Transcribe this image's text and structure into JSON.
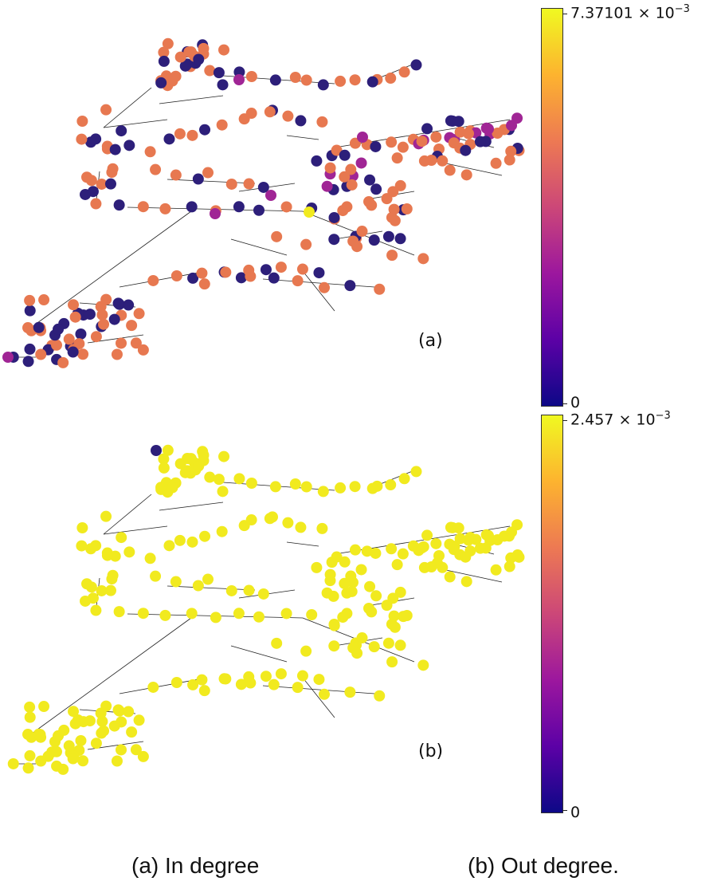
{
  "panels": {
    "a": {
      "label": "(a)",
      "caption": "(a) In degree",
      "cb_max": "7.37101",
      "cb_min": "0"
    },
    "b": {
      "label": "(b)",
      "caption": "(b) Out degree.",
      "cb_max": "2.457",
      "cb_min": "0"
    }
  },
  "exp": {
    "mult": "×",
    "base": "10",
    "power": "−3"
  },
  "colors": {
    "low": "#2d1f7a",
    "mid": "#e77850",
    "high_mid": "#a02595",
    "top": "#f1ea1f",
    "colormap": [
      "#0d0887",
      "#5c01a6",
      "#9c179e",
      "#cc4778",
      "#ed7953",
      "#fdb32f",
      "#f0f921"
    ]
  },
  "chart_data": [
    {
      "type": "network",
      "title": "(a) In degree",
      "colorbar": {
        "min": 0,
        "max": 0.00737101,
        "label_max": "7.37101 × 10^-3",
        "colormap": "plasma"
      },
      "node_value_classes": [
        {
          "name": "zero",
          "approx_value": 0
        },
        {
          "name": "low_positive",
          "approx_value": 0.0046
        },
        {
          "name": "mid",
          "approx_value": 0.0029
        },
        {
          "name": "max",
          "approx_value": 0.00737101
        }
      ]
    },
    {
      "type": "network",
      "title": "(b) Out degree.",
      "colorbar": {
        "min": 0,
        "max": 0.002457,
        "label_max": "2.457 × 10^-3",
        "colormap": "plasma"
      },
      "node_value_classes": [
        {
          "name": "typical",
          "approx_value": 0.002457
        },
        {
          "name": "zero",
          "approx_value": 0
        }
      ]
    }
  ]
}
